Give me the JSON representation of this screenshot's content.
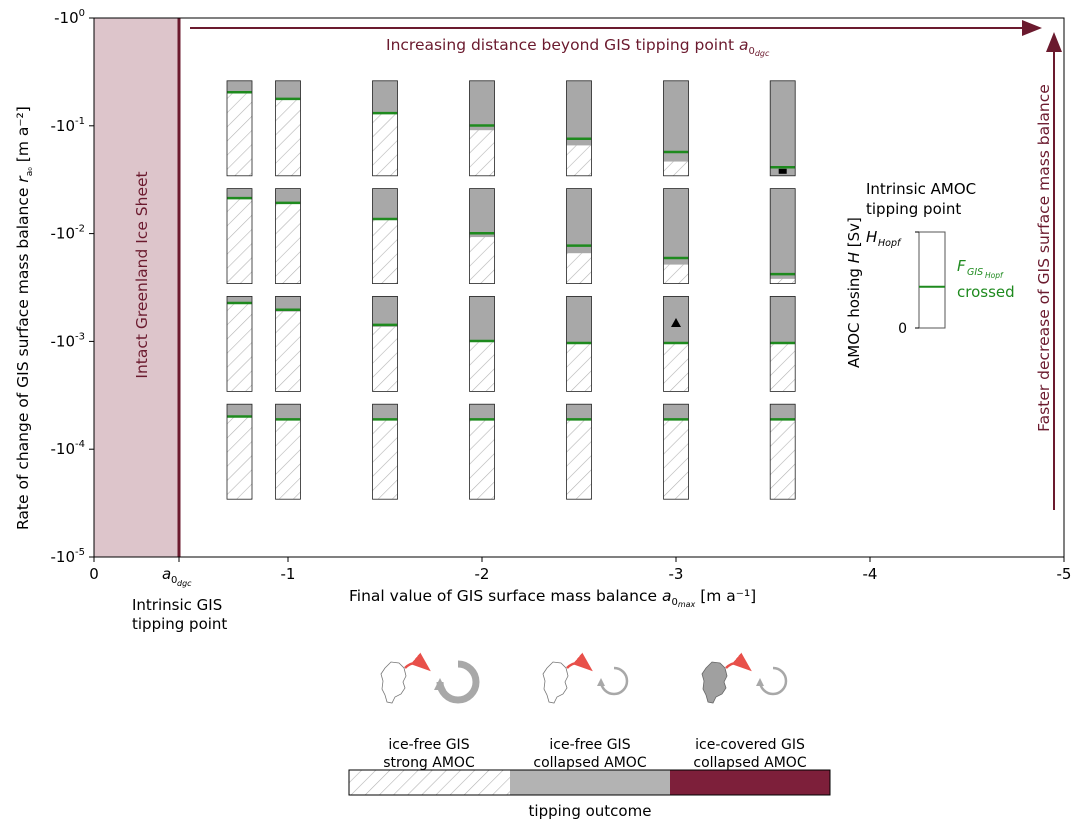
{
  "chart_data": {
    "type": "bar",
    "xlabel_main": "Final value of GIS surface mass balance ",
    "xlabel_sym": "a",
    "xlabel_sub0": "0",
    "xlabel_subsub": "max",
    "xlabel_unit": " [m a⁻¹]",
    "ylabel_main": "Rate of change of GIS surface mass balance ",
    "ylabel_sym": "r",
    "ylabel_sub": "a₀",
    "ylabel_unit": " [m a⁻²]",
    "x_ticks": [
      {
        "value": 0,
        "label": "0"
      },
      {
        "value": -1,
        "label": "-1"
      },
      {
        "value": -2,
        "label": "-2"
      },
      {
        "value": -3,
        "label": "-3"
      },
      {
        "value": -4,
        "label": "-4"
      },
      {
        "value": -5,
        "label": "-5"
      }
    ],
    "x_special_tick": {
      "value": -0.43,
      "sym": "a",
      "sub": "0",
      "subsub": "dgc"
    },
    "y_ticks": [
      {
        "exp": 0,
        "label": "-10",
        "sup": "0"
      },
      {
        "exp": -1,
        "label": "-10",
        "sup": "-1"
      },
      {
        "exp": -2,
        "label": "-10",
        "sup": "-2"
      },
      {
        "exp": -3,
        "label": "-10",
        "sup": "-3"
      },
      {
        "exp": -4,
        "label": "-10",
        "sup": "-4"
      },
      {
        "exp": -5,
        "label": "-10",
        "sup": "-5"
      }
    ],
    "xlim": [
      0,
      -5
    ],
    "ylim_log10": [
      -5,
      0
    ],
    "x_positions": [
      -0.75,
      -1.0,
      -1.5,
      -2.0,
      -2.5,
      -3.0,
      -3.55
    ],
    "rate_rows_log10": [
      -1,
      -2,
      -3,
      -4
    ],
    "bars": [
      {
        "row": -1,
        "strong_fraction": [
          0.87,
          0.8,
          0.65,
          0.48,
          0.32,
          0.15,
          0.0
        ],
        "green_line": [
          0.88,
          0.81,
          0.66,
          0.53,
          0.39,
          0.25,
          0.09
        ]
      },
      {
        "row": -2,
        "strong_fraction": [
          0.89,
          0.84,
          0.67,
          0.49,
          0.32,
          0.2,
          0.05
        ],
        "green_line": [
          0.9,
          0.85,
          0.68,
          0.53,
          0.4,
          0.27,
          0.1
        ]
      },
      {
        "row": -3,
        "strong_fraction": [
          0.92,
          0.84,
          0.68,
          0.52,
          0.5,
          0.5,
          0.5
        ],
        "green_line": [
          0.93,
          0.86,
          0.7,
          0.53,
          0.51,
          0.51,
          0.51
        ]
      },
      {
        "row": -4,
        "strong_fraction": [
          0.86,
          0.83,
          0.83,
          0.83,
          0.83,
          0.83,
          0.83
        ],
        "green_line": [
          0.87,
          0.84,
          0.84,
          0.84,
          0.84,
          0.84,
          0.84
        ]
      }
    ],
    "markers": [
      {
        "type": "square",
        "x": -3.55,
        "row": -1,
        "frac": 0.02
      },
      {
        "type": "triangle",
        "x": -3.0,
        "row": -3,
        "frac": 0.72
      }
    ],
    "region_label": "Intact Greenland Ice Sheet",
    "top_arrow_label": "Increasing distance beyond GIS tipping point ",
    "top_arrow_sym": "a",
    "top_arrow_sub0": "0",
    "top_arrow_subsub": "dgc",
    "right_arrow_label": "Faster decrease of GIS surface mass balance",
    "below_tick_label": [
      "Intrinsic GIS",
      "tipping point"
    ],
    "inset": {
      "title": [
        "Intrinsic AMOC",
        "tipping point"
      ],
      "ylabel": "AMOC hosing ",
      "ylabel_sym": "H",
      "ylabel_unit": " [Sv]",
      "top_label_sym": "H",
      "top_label_sub": "Hopf",
      "bottom_label": "0",
      "line_label_sym": "F",
      "line_label_sub": "GIS",
      "line_label_subsub": "Hopf",
      "line_label_2": "crossed",
      "line_frac": 0.43
    },
    "legend": {
      "title": "tipping outcome",
      "items": [
        {
          "line1": "ice-free GIS",
          "line2": "strong AMOC"
        },
        {
          "line1": "ice-free GIS",
          "line2": "collapsed AMOC"
        },
        {
          "line1": "ice-covered GIS",
          "line2": "collapsed AMOC"
        }
      ]
    },
    "colors": {
      "maroon": "#6b1a2e",
      "region": "#ddc5cb",
      "gray": "#a8a8a8",
      "green": "#1e8a1e",
      "legend_maroon": "#7d1f3a",
      "arrow_red": "#e8504a"
    }
  }
}
